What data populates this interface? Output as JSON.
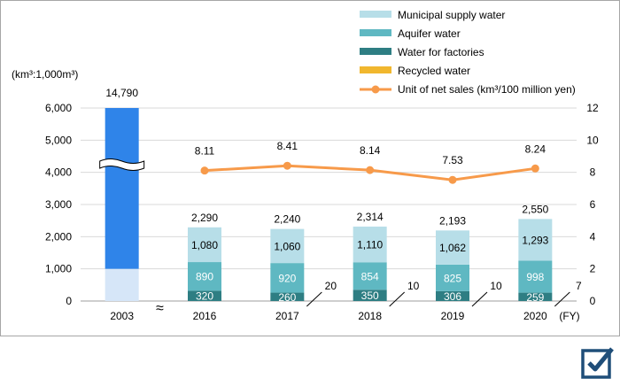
{
  "chart_data": {
    "type": "bar",
    "unit_label": "(km³:1,000m³)",
    "xlabel": "(FY)",
    "categories": [
      "2003",
      "2016",
      "2017",
      "2018",
      "2019",
      "2020"
    ],
    "ylim_left": [
      0,
      6000
    ],
    "yticks_left": [
      "0",
      "1,000",
      "2,000",
      "3,000",
      "4,000",
      "5,000",
      "6,000"
    ],
    "ylim_right": [
      0,
      12
    ],
    "yticks_right": [
      "0",
      "2",
      "4",
      "6",
      "8",
      "10",
      "12"
    ],
    "axis_break_note": "≈",
    "series": [
      {
        "name": "Municipal supply water",
        "color": "#b7dee8",
        "values": [
          null,
          1080,
          1060,
          1110,
          1062,
          1293
        ],
        "labels": [
          "",
          "1,080",
          "1,060",
          "1,110",
          "1,062",
          "1,293"
        ]
      },
      {
        "name": "Aquifer water",
        "color": "#5fb8c2",
        "values": [
          null,
          890,
          920,
          854,
          825,
          998
        ],
        "labels": [
          "",
          "890",
          "920",
          "854",
          "825",
          "998"
        ]
      },
      {
        "name": "Water for factories",
        "color": "#2e7e83",
        "values": [
          null,
          320,
          260,
          350,
          306,
          259
        ],
        "labels": [
          "",
          "320",
          "260",
          "350",
          "306",
          "259"
        ]
      },
      {
        "name": "Recycled water",
        "color": "#f1b72e",
        "values": [
          null,
          0,
          20,
          10,
          10,
          7
        ],
        "labels": [
          "",
          "",
          "20",
          "10",
          "10",
          "7"
        ]
      }
    ],
    "total_2003": {
      "value": 14790,
      "label": "14,790",
      "color": "#2f84e9",
      "base_color": "#d6e6f8"
    },
    "totals": [
      "14,790",
      "2,290",
      "2,240",
      "2,314",
      "2,193",
      "2,550"
    ],
    "line_series": {
      "name": "Unit of net sales (km³/100 million yen)",
      "color": "#f79a4a",
      "values": [
        null,
        8.11,
        8.41,
        8.14,
        7.53,
        8.24
      ],
      "labels": [
        "",
        "8.11",
        "8.41",
        "8.14",
        "7.53",
        "8.24"
      ]
    },
    "legend_position": "top-right",
    "grid": true
  }
}
